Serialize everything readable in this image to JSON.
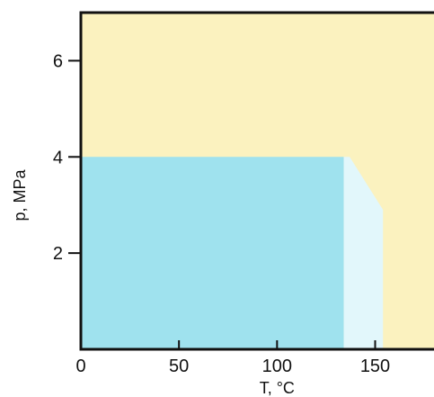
{
  "chart_data": {
    "type": "area",
    "xlabel": "T, °C",
    "ylabel": "p, MPa",
    "xlim": [
      0,
      180
    ],
    "ylim": [
      0,
      7
    ],
    "x_ticks": [
      0,
      50,
      100,
      150
    ],
    "y_ticks": [
      2,
      4,
      6
    ],
    "grid": false,
    "colors": {
      "background_region": "#fbf2bf",
      "blue_region": "#9fe2ee",
      "light_region": "#e2f7fb",
      "axis": "#111111"
    },
    "regions": [
      {
        "fill": "blue_region",
        "polygon": [
          [
            0,
            0
          ],
          [
            134,
            0
          ],
          [
            134,
            4
          ],
          [
            0,
            4
          ]
        ]
      },
      {
        "fill": "light_region",
        "polygon": [
          [
            134,
            0
          ],
          [
            154,
            0
          ],
          [
            154,
            2.9
          ],
          [
            137,
            4
          ],
          [
            134,
            4
          ]
        ]
      }
    ]
  }
}
